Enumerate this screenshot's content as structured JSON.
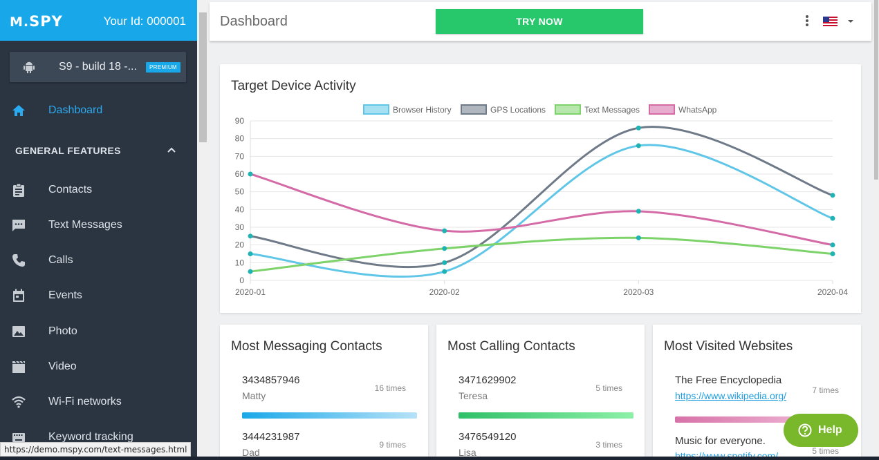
{
  "sidebar": {
    "logo": "SPY",
    "user_id": "Your Id: 000001",
    "device_name": "S9 - build 18 -...",
    "device_badge": "PREMIUM",
    "dashboard_label": "Dashboard",
    "section_title": "GENERAL FEATURES",
    "items": [
      {
        "label": "Contacts",
        "icon": "clipboard-icon"
      },
      {
        "label": "Text Messages",
        "icon": "message-icon"
      },
      {
        "label": "Calls",
        "icon": "phone-icon"
      },
      {
        "label": "Events",
        "icon": "calendar-icon"
      },
      {
        "label": "Photo",
        "icon": "image-icon"
      },
      {
        "label": "Video",
        "icon": "film-icon"
      },
      {
        "label": "Wi-Fi networks",
        "icon": "wifi-icon"
      },
      {
        "label": "Keyword tracking",
        "icon": "keyboard-icon"
      }
    ]
  },
  "status_url": "https://demo.mspy.com/text-messages.html",
  "header": {
    "title": "Dashboard",
    "try_now": "TRY NOW"
  },
  "chart_data": {
    "type": "line",
    "title": "Target Device Activity",
    "categories": [
      "2020-01",
      "2020-02",
      "2020-03",
      "2020-04"
    ],
    "y_ticks": [
      "0",
      "10",
      "20",
      "30",
      "40",
      "50",
      "60",
      "70",
      "80",
      "90"
    ],
    "ylim": [
      0,
      90
    ],
    "legend_position": "top",
    "grid": true,
    "series": [
      {
        "name": "Browser History",
        "values": [
          15,
          5,
          76,
          35
        ],
        "color": "#5fc6e8"
      },
      {
        "name": "GPS Locations",
        "values": [
          25,
          10,
          86,
          48
        ],
        "color": "#6f7a88"
      },
      {
        "name": "Text Messages",
        "values": [
          5,
          18,
          24,
          15
        ],
        "color": "#7dd36a"
      },
      {
        "name": "WhatsApp",
        "values": [
          60,
          28,
          39,
          20
        ],
        "color": "#d46aa6"
      }
    ]
  },
  "messaging": {
    "title": "Most Messaging Contacts",
    "rows": [
      {
        "number": "3434857946",
        "name": "Matty",
        "times": "16 times",
        "share": 1.0
      },
      {
        "number": "3444231987",
        "name": "Dad",
        "times": "9 times"
      }
    ]
  },
  "calling": {
    "title": "Most Calling Contacts",
    "rows": [
      {
        "number": "3471629902",
        "name": "Teresa",
        "times": "5 times",
        "share": 1.0
      },
      {
        "number": "3476549120",
        "name": "Lisa",
        "times": "3 times"
      }
    ]
  },
  "websites": {
    "title": "Most Visited Websites",
    "rows": [
      {
        "title": "The Free Encyclopedia",
        "url": "https://www.wikipedia.org/",
        "times": "7 times",
        "share": 1.0
      },
      {
        "title": "Music for everyone.",
        "url": "https://www.spotify.com/",
        "times": "5 times"
      }
    ]
  },
  "help": {
    "label": "Help"
  },
  "colors": {
    "brand": "#18a7e9",
    "sidebar": "#2b3542",
    "accent_green": "#27c86c",
    "help_green": "#79b72b"
  }
}
